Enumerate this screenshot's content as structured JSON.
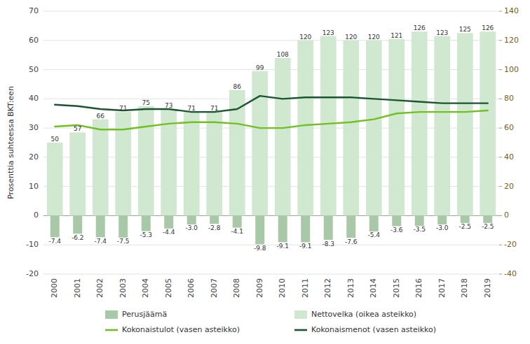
{
  "chart_data": {
    "type": "bar",
    "y_label": "Prosenttia suhteessa BKT:een",
    "categories": [
      "2000",
      "2001",
      "2002",
      "2003",
      "2004",
      "2005",
      "2006",
      "2007",
      "2008",
      "2009",
      "2010",
      "2011",
      "2012",
      "2013",
      "2014",
      "2015",
      "2016",
      "2017",
      "2018",
      "2019"
    ],
    "series": [
      {
        "name": "Perusjäämä",
        "type": "bar",
        "color": "#a8c8a8",
        "values": [
          -7.4,
          -6.2,
          -7.4,
          -7.5,
          -5.3,
          -4.4,
          -3.0,
          -2.8,
          -4.1,
          -9.8,
          -9.1,
          -9.1,
          -8.3,
          -7.6,
          -5.4,
          -3.6,
          -3.5,
          -3.0,
          -2.5,
          -2.5
        ],
        "value_labels": [
          "-7.4",
          "-6.2",
          "-7.4",
          "-7.5",
          "-5.3",
          "-4.4",
          "-3.0",
          "-2.8",
          "-4.1",
          "-9.8",
          "-9.1",
          "-9.1",
          "-8.3",
          "-7.6",
          "-5.4",
          "-3.6",
          "-3.5",
          "-3.0",
          "-2.5",
          "-2.5"
        ]
      },
      {
        "name": "Nettovelka (oikea asteikko)",
        "type": "bar",
        "axis": "y2",
        "color": "#d0e8d0",
        "values": [
          50,
          57,
          66,
          71,
          75,
          73,
          71,
          71,
          86,
          99,
          108,
          120,
          123,
          120,
          120,
          121,
          126,
          123,
          125,
          126
        ]
      },
      {
        "name": "Kokonaistulot (vasen asteikko)",
        "type": "line",
        "color": "#70c020",
        "values": [
          30.5,
          31.0,
          29.5,
          29.5,
          30.5,
          31.5,
          32.0,
          32.0,
          31.5,
          30.0,
          30.0,
          31.0,
          31.5,
          32.0,
          33.0,
          35.0,
          35.5,
          35.5,
          35.5,
          36.0
        ]
      },
      {
        "name": "Kokonaismenot (vasen asteikko)",
        "type": "line",
        "color": "#1a5532",
        "values": [
          38.0,
          37.5,
          36.5,
          36.0,
          36.5,
          36.5,
          35.5,
          35.5,
          36.5,
          41.0,
          40.0,
          40.5,
          40.5,
          40.5,
          40.0,
          39.5,
          39.0,
          38.5,
          38.5,
          38.5
        ]
      }
    ],
    "ylim": [
      -20,
      70
    ],
    "yticks": [
      -20,
      -10,
      0,
      10,
      20,
      30,
      40,
      50,
      60,
      70
    ],
    "y2lim": [
      -40,
      140
    ],
    "y2ticks": [
      -40,
      -20,
      0,
      20,
      40,
      60,
      80,
      100,
      120,
      140
    ],
    "grid": true,
    "data_labels": true,
    "legend": "bottom"
  }
}
